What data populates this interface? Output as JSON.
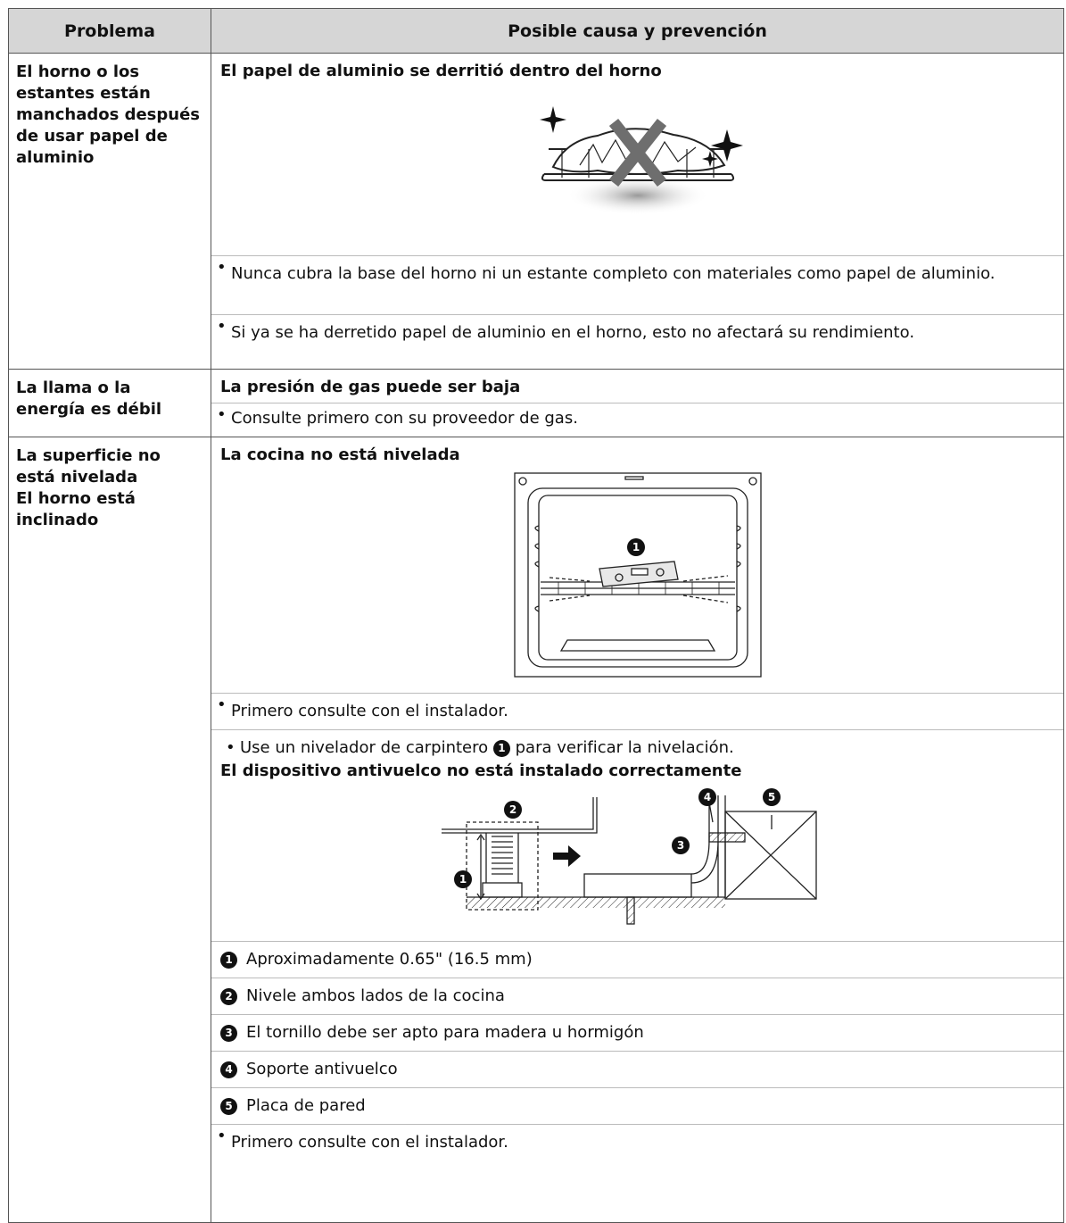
{
  "header": {
    "problem": "Problema",
    "cause": "Posible causa y prevención"
  },
  "rows": [
    {
      "problem_lines": [
        "El horno o los estantes están manchados después de usar papel de aluminio"
      ],
      "sections": [
        {
          "cause": "El papel de aluminio se derritió dentro del horno",
          "items": [
            {
              "text": "Nunca cubra la base del horno ni un estante completo con materiales como papel de aluminio."
            },
            {
              "text": "Si ya se ha derretido papel de aluminio en el horno, esto no afectará su rendimiento."
            }
          ]
        }
      ]
    },
    {
      "problem_lines": [
        "La llama o la energía es débil"
      ],
      "sections": [
        {
          "cause": "La presión de gas puede ser baja",
          "items": [
            {
              "text": "Consulte primero con su proveedor de gas."
            }
          ]
        }
      ]
    },
    {
      "problem_lines": [
        "La superficie no está nivelada",
        "El horno está inclinado"
      ],
      "sections": [
        {
          "cause": "La cocina no está nivelada",
          "callouts": [
            1
          ],
          "items": [
            {
              "text": "Primero consulte con el instalador."
            },
            {
              "text": "Use un nivelador de carpintero",
              "badge": 1,
              "after": "para verificar la nivelación."
            }
          ]
        },
        {
          "cause": "El dispositivo antivuelco no está instalado correctamente",
          "callouts": [
            1,
            2,
            3,
            4,
            5
          ],
          "numbered": [
            {
              "badge": 1,
              "text": "Aproximadamente 0.65\" (16.5 mm)"
            },
            {
              "badge": 2,
              "text": "Nivele ambos lados de la cocina"
            },
            {
              "badge": 3,
              "text": "El tornillo debe ser apto para madera u hormigón"
            },
            {
              "badge": 4,
              "text": "Soporte antivuelco"
            },
            {
              "badge": 5,
              "text": "Placa de pared"
            }
          ],
          "items": [
            {
              "text": "Primero consulte con el instalador."
            }
          ]
        }
      ]
    }
  ]
}
